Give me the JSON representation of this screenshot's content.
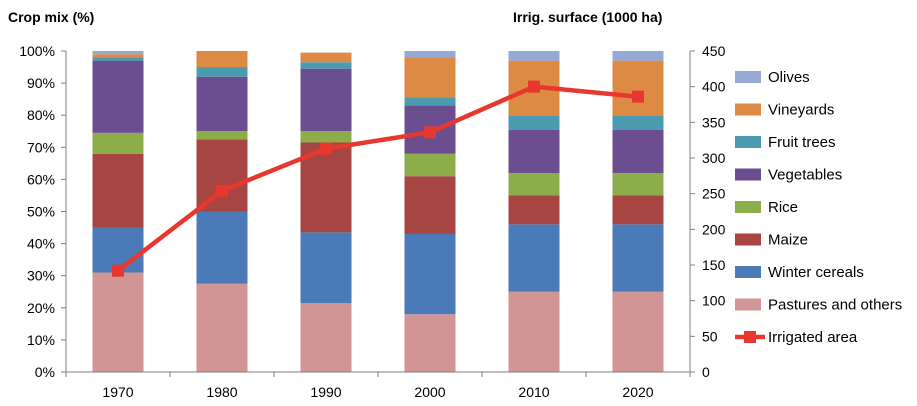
{
  "chart_data": {
    "type": "bar",
    "stacked": true,
    "categories": [
      "1970",
      "1980",
      "1990",
      "2000",
      "2010",
      "2020"
    ],
    "y_left": {
      "title": "Crop mix (%)",
      "ticks": [
        "0%",
        "10%",
        "20%",
        "30%",
        "40%",
        "50%",
        "60%",
        "70%",
        "80%",
        "90%",
        "100%"
      ],
      "range": [
        0,
        100
      ]
    },
    "y_right": {
      "title": "Irrig. surface (1000 ha)",
      "ticks": [
        "0",
        "50",
        "100",
        "150",
        "200",
        "250",
        "300",
        "350",
        "400",
        "450"
      ],
      "range": [
        0,
        450
      ]
    },
    "series": [
      {
        "name": "Pastures and others",
        "color": "#D09594",
        "values": [
          31,
          27.5,
          21.5,
          18,
          25,
          25
        ]
      },
      {
        "name": "Winter cereals",
        "color": "#4A7AB8",
        "values": [
          14,
          22.5,
          22,
          25,
          21,
          21
        ]
      },
      {
        "name": "Maize",
        "color": "#A64542",
        "values": [
          23,
          22.5,
          28,
          18,
          9,
          9
        ]
      },
      {
        "name": "Rice",
        "color": "#8DAD4A",
        "values": [
          6.5,
          2.5,
          3.5,
          7,
          7,
          7
        ]
      },
      {
        "name": "Vegetables",
        "color": "#6B4E8F",
        "values": [
          22.5,
          17,
          19.5,
          15,
          13.5,
          13.5
        ]
      },
      {
        "name": "Fruit trees",
        "color": "#4A9BB0",
        "values": [
          1,
          3,
          2,
          2.5,
          4.5,
          4.5
        ]
      },
      {
        "name": "Vineyards",
        "color": "#DD8A45",
        "values": [
          1,
          5,
          3,
          12.5,
          17,
          17
        ]
      },
      {
        "name": "Olives",
        "color": "#95A9D4",
        "values": [
          1,
          0,
          0,
          2,
          3,
          3
        ]
      }
    ],
    "line_series": {
      "name": "Irrigated area",
      "color": "#E8372E",
      "axis": "right",
      "values": [
        142,
        254,
        313,
        336,
        400,
        386
      ]
    },
    "legend_position": "right",
    "grid": false
  }
}
